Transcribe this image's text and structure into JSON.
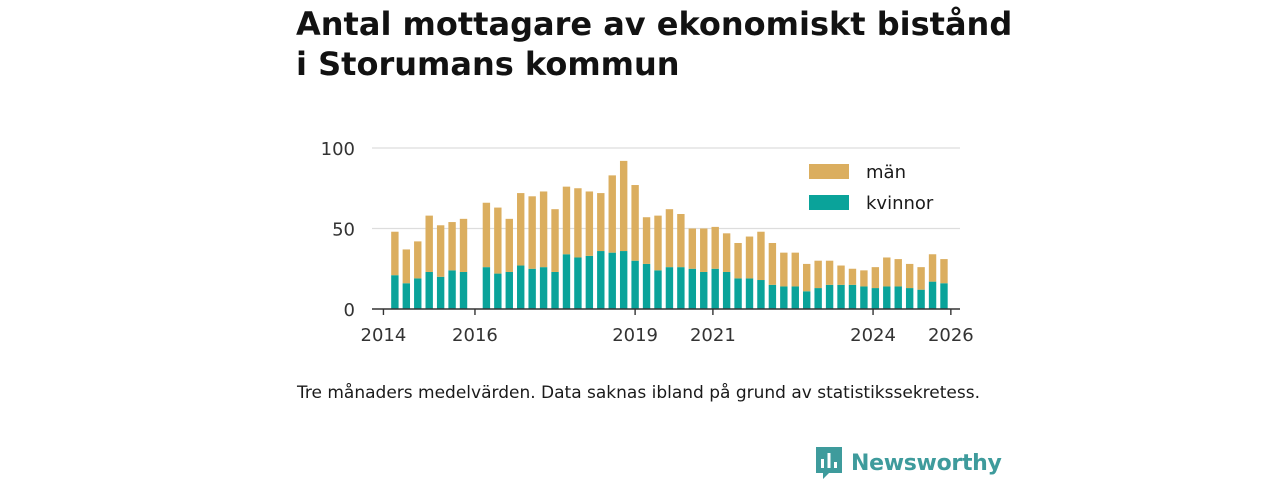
{
  "title_lines": [
    "Antal mottagare av ekonomiskt bistånd",
    "i Storumans kommun"
  ],
  "note": "Tre månaders medelvärden. Data saknas ibland på grund av statistikssekretess.",
  "brand": {
    "name": "Newsworthy",
    "color": "#3e9b9c"
  },
  "colors": {
    "men": "#dbae5f",
    "women": "#0aa39a",
    "grid": "#dddddd",
    "axis": "#333333"
  },
  "chart_data": {
    "type": "bar",
    "stacked": true,
    "title": "Antal mottagare av ekonomiskt bistånd i Storumans kommun",
    "xlabel": "",
    "ylabel": "",
    "ylim": [
      0,
      100
    ],
    "yticks": [
      0,
      50,
      100
    ],
    "xlim": [
      2013.75,
      2026.6
    ],
    "xticks": [
      "2014",
      "2016",
      "2019",
      "2021",
      "2024",
      "2026"
    ],
    "xtick_values": [
      2014,
      2016,
      2019.5,
      2021.2,
      2024.7,
      2026.4
    ],
    "legend": [
      "män",
      "kvinnor"
    ],
    "legend_position": "top-right",
    "x": [
      2014.25,
      2014.5,
      2014.75,
      2015.0,
      2015.25,
      2015.5,
      2015.75,
      2016.25,
      2016.5,
      2016.75,
      2017.0,
      2017.25,
      2017.5,
      2017.75,
      2018.0,
      2018.25,
      2018.5,
      2018.75,
      2019.0,
      2019.25,
      2019.5,
      2019.75,
      2020.0,
      2020.25,
      2020.5,
      2020.75,
      2021.0,
      2021.25,
      2021.5,
      2021.75,
      2022.0,
      2022.25,
      2022.5,
      2022.75,
      2023.0,
      2023.25,
      2023.5,
      2023.75,
      2024.0,
      2024.25,
      2024.5,
      2024.75,
      2025.0,
      2025.25,
      2025.5,
      2025.75,
      2026.0,
      2026.25
    ],
    "series": [
      {
        "name": "kvinnor",
        "values": [
          21,
          16,
          19,
          23,
          20,
          24,
          23,
          26,
          22,
          23,
          27,
          25,
          26,
          23,
          34,
          32,
          33,
          36,
          35,
          36,
          30,
          28,
          24,
          26,
          26,
          25,
          23,
          25,
          23,
          19,
          19,
          18,
          15,
          14,
          14,
          11,
          13,
          15,
          15,
          15,
          14,
          13,
          14,
          14,
          13,
          12,
          17,
          16
        ]
      },
      {
        "name": "män",
        "values": [
          27,
          21,
          23,
          35,
          32,
          30,
          33,
          40,
          41,
          33,
          45,
          45,
          47,
          39,
          42,
          43,
          40,
          36,
          48,
          56,
          47,
          29,
          34,
          36,
          33,
          25,
          27,
          26,
          24,
          22,
          26,
          30,
          26,
          21,
          21,
          17,
          17,
          15,
          12,
          10,
          10,
          13,
          18,
          17,
          15,
          14,
          17,
          15
        ]
      }
    ]
  }
}
